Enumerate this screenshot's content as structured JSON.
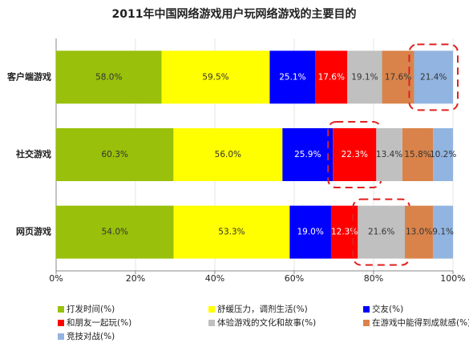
{
  "chart_data": {
    "type": "stacked_bar_percent",
    "title": "2011年中国网络游戏用户玩网络游戏的主要目的",
    "categories": [
      "客户端游戏",
      "社交游戏",
      "网页游戏"
    ],
    "series": [
      {
        "name": "打发时间(%)",
        "color": "#99c00a",
        "values": [
          58.0,
          60.3,
          54.0
        ],
        "value_labels": [
          "58.0%",
          "60.3%",
          "54.0%"
        ]
      },
      {
        "name": "舒缓压力，调剂生活(%)",
        "color": "#ffff00",
        "values": [
          59.5,
          56.0,
          53.3
        ],
        "value_labels": [
          "59.5%",
          "56.0%",
          "53.3%"
        ]
      },
      {
        "name": "交友(%)",
        "color": "#0000ff",
        "values": [
          25.1,
          25.9,
          19.0
        ],
        "value_labels": [
          "25.1%",
          "25.9%",
          "19.0%"
        ]
      },
      {
        "name": "和朋友一起玩(%)",
        "color": "#ff0000",
        "values": [
          17.6,
          22.3,
          12.3
        ],
        "value_labels": [
          "17.6%",
          "22.3%",
          "12.3%"
        ]
      },
      {
        "name": "体验游戏的文化和故事(%)",
        "color": "#c0c0c0",
        "values": [
          19.1,
          13.4,
          21.6
        ],
        "value_labels": [
          "19.1%",
          "13.4%",
          "21.6%"
        ]
      },
      {
        "name": "在游戏中能得到成就感(%)",
        "color": "#d9834a",
        "values": [
          17.6,
          15.8,
          13.0
        ],
        "value_labels": [
          "17.6%",
          "15.8%",
          "13.0%"
        ]
      },
      {
        "name": "竞技对战(%)",
        "color": "#92b4e0",
        "values": [
          21.4,
          10.2,
          9.1
        ],
        "value_labels": [
          "21.4%",
          "10.2%",
          "9.1%"
        ]
      }
    ],
    "xlim": [
      0,
      100
    ],
    "xticks": [
      {
        "value": 0,
        "label": "0%"
      },
      {
        "value": 20,
        "label": "20%"
      },
      {
        "value": 40,
        "label": "40%"
      },
      {
        "value": 60,
        "label": "60%"
      },
      {
        "value": 80,
        "label": "80%"
      },
      {
        "value": 100,
        "label": "100%"
      }
    ],
    "grid": true
  }
}
